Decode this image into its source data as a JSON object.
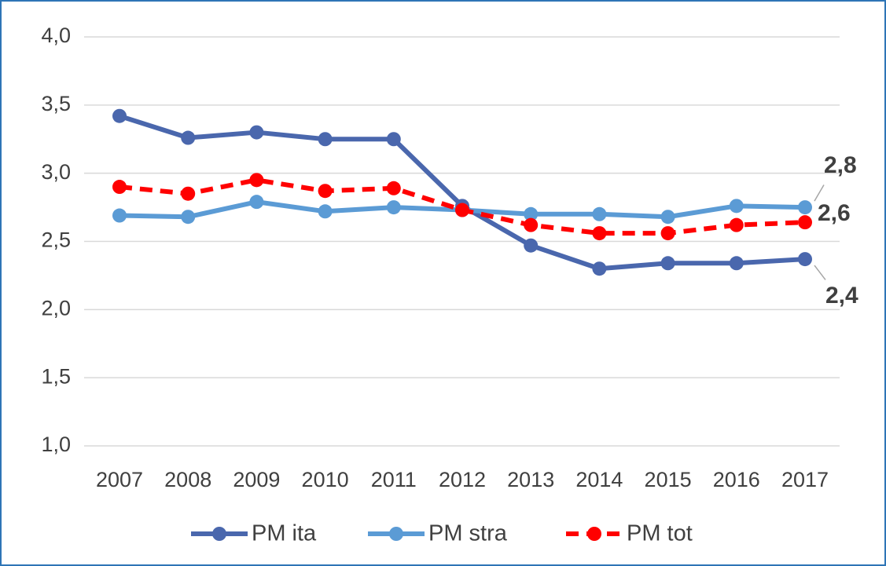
{
  "chart_data": {
    "type": "line",
    "categories": [
      "2007",
      "2008",
      "2009",
      "2010",
      "2011",
      "2012",
      "2013",
      "2014",
      "2015",
      "2016",
      "2017"
    ],
    "series": [
      {
        "name": "PM ita",
        "color": "#4a67ad",
        "dashed": false,
        "values": [
          3.42,
          3.26,
          3.3,
          3.25,
          3.25,
          2.76,
          2.47,
          2.3,
          2.34,
          2.34,
          2.37
        ],
        "value_labels": [
          null,
          null,
          null,
          null,
          null,
          null,
          null,
          null,
          null,
          null,
          "2,4"
        ]
      },
      {
        "name": "PM stra",
        "color": "#5b9bd5",
        "dashed": false,
        "values": [
          2.69,
          2.68,
          2.79,
          2.72,
          2.75,
          2.73,
          2.7,
          2.7,
          2.68,
          2.76,
          2.75
        ],
        "value_labels": [
          null,
          null,
          null,
          null,
          null,
          null,
          null,
          null,
          null,
          null,
          "2,8"
        ]
      },
      {
        "name": "PM tot",
        "color": "#ff0000",
        "dashed": true,
        "values": [
          2.9,
          2.85,
          2.95,
          2.87,
          2.89,
          2.73,
          2.62,
          2.56,
          2.56,
          2.62,
          2.64
        ],
        "value_labels": [
          null,
          null,
          null,
          null,
          null,
          null,
          null,
          null,
          null,
          null,
          "2,6"
        ]
      }
    ],
    "ylim": [
      1.0,
      4.0
    ],
    "yticks": [
      {
        "value": 1.0,
        "label": "1,0"
      },
      {
        "value": 1.5,
        "label": "1,5"
      },
      {
        "value": 2.0,
        "label": "2,0"
      },
      {
        "value": 2.5,
        "label": "2,5"
      },
      {
        "value": 3.0,
        "label": "3,0"
      },
      {
        "value": 3.5,
        "label": "3,5"
      },
      {
        "value": 4.0,
        "label": "4,0"
      }
    ],
    "grid": true,
    "legend": "bottom"
  }
}
